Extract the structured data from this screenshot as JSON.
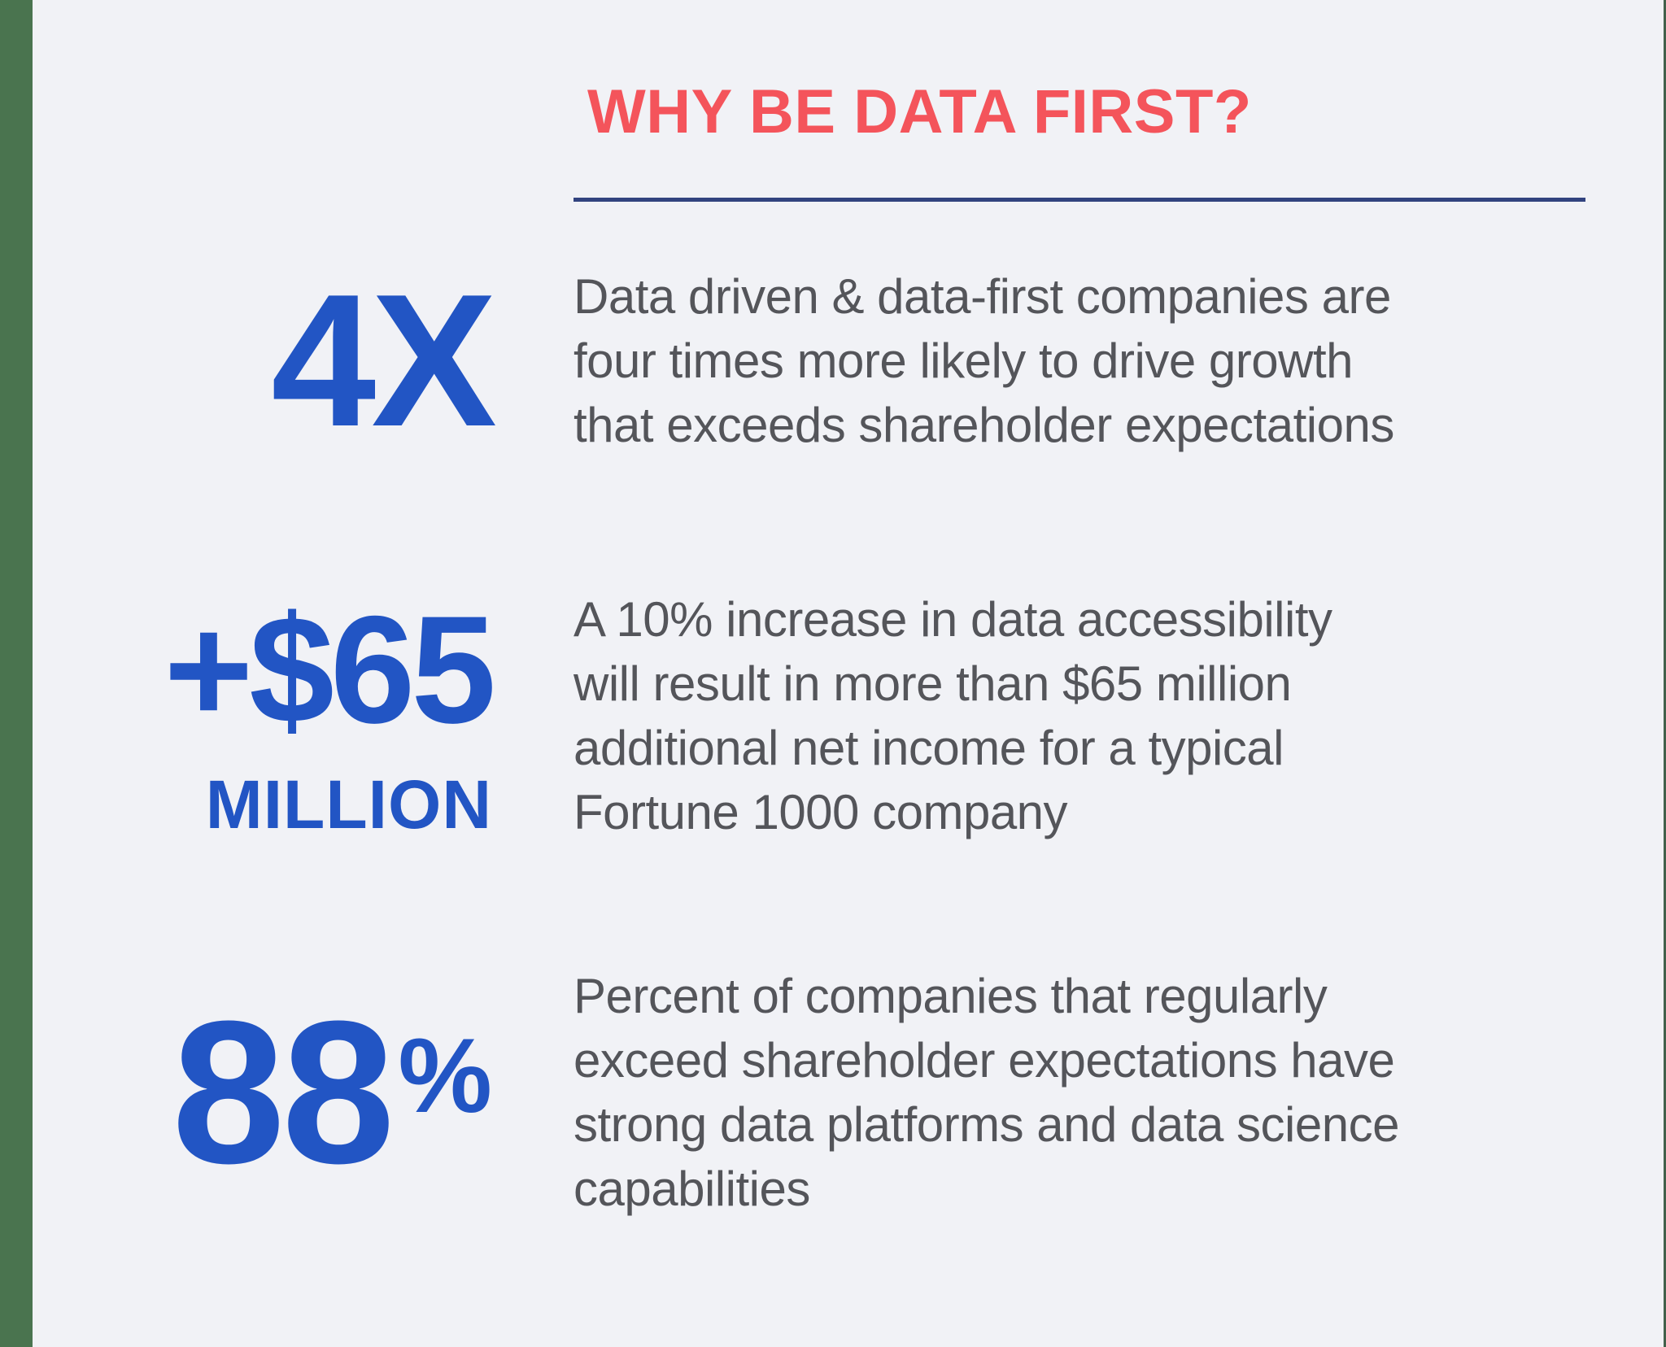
{
  "colors": {
    "background": "#F1F2F6",
    "accent_bar_green": "#4A744F",
    "title_red": "#F4545B",
    "divider_navy": "#32437F",
    "stat_blue": "#2255C4",
    "body_gray": "#54555A"
  },
  "header": {
    "title": "WHY BE DATA FIRST?"
  },
  "stats": [
    {
      "value": "4X",
      "description_lines": [
        "Data driven & data-first companies are",
        "four times more likely to drive growth",
        "that exceeds shareholder expectations"
      ]
    },
    {
      "value": "+$65",
      "unit": "MILLION",
      "description_lines": [
        "A 10% increase in data accessibility",
        "will result in more than $65 million",
        "additional net income for a typical",
        "Fortune 1000 company"
      ]
    },
    {
      "value": "88",
      "unit": "%",
      "description_lines": [
        "Percent of companies that regularly",
        "exceed shareholder expectations have",
        "strong data platforms and data science",
        "capabilities"
      ]
    }
  ]
}
